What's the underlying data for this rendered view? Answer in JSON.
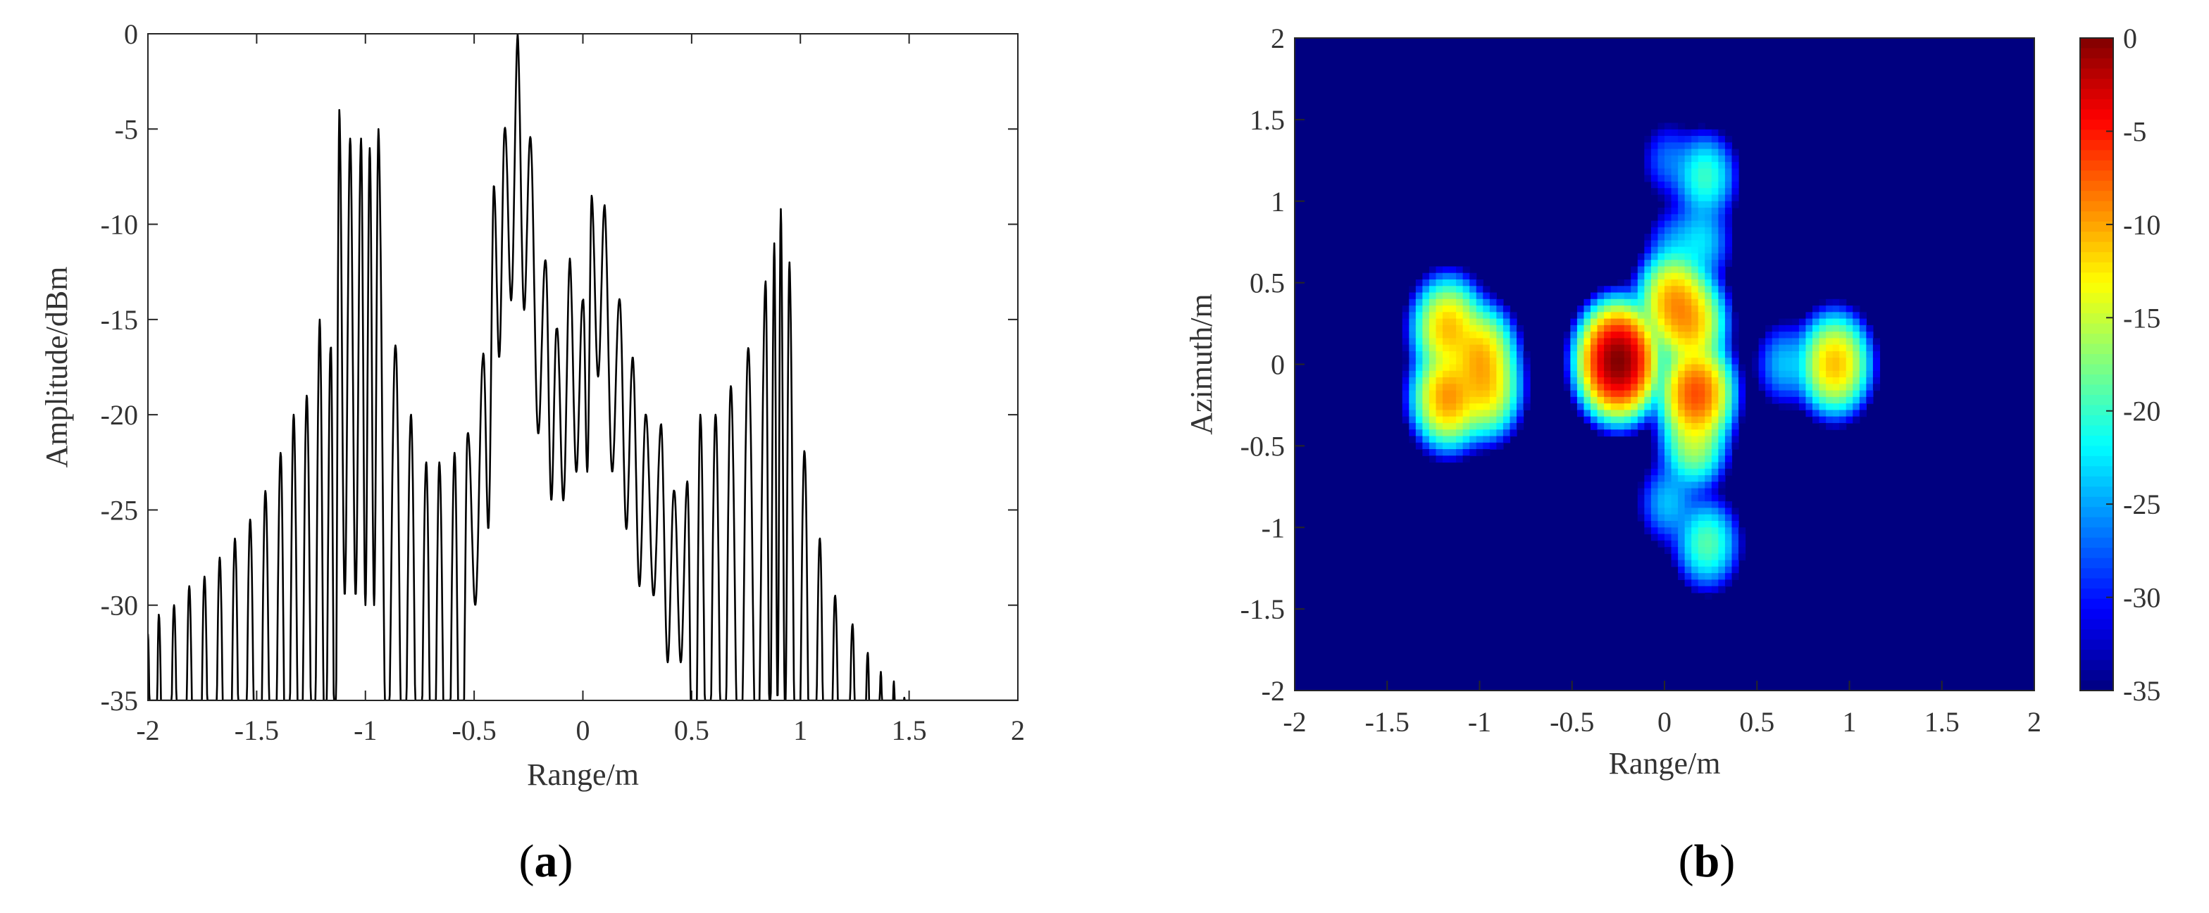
{
  "panels": {
    "a": {
      "label": "(a)",
      "letter": "a"
    },
    "b": {
      "label": "(b)",
      "letter": "b"
    }
  },
  "chart_data": [
    {
      "type": "line",
      "panel": "(a)",
      "xlabel": "Range/m",
      "ylabel": "Amplitude/dBm",
      "xlim": [
        -2,
        2
      ],
      "ylim": [
        -35,
        0
      ],
      "xticks": [
        -2,
        -1.5,
        -1,
        -0.5,
        0,
        0.5,
        1,
        1.5,
        2
      ],
      "xtick_labels": [
        "-2",
        "-1.5",
        "-1",
        "-0.5",
        "0",
        "0.5",
        "1",
        "1.5",
        "2"
      ],
      "yticks": [
        0,
        -5,
        -10,
        -15,
        -20,
        -25,
        -30,
        -35
      ],
      "ytick_labels": [
        "0",
        "-5",
        "-10",
        "-15",
        "-20",
        "-25",
        "-30",
        "-35"
      ],
      "grid": false,
      "line_color": "#000000",
      "series": [
        {
          "envelope_peaks": {
            "x": [
              -2.0,
              -1.95,
              -1.88,
              -1.81,
              -1.74,
              -1.67,
              -1.6,
              -1.53,
              -1.46,
              -1.39,
              -1.33,
              -1.27,
              -1.21,
              -1.16,
              -1.12,
              -1.07,
              -1.02,
              -0.98,
              -0.94,
              -0.86,
              -0.79,
              -0.72,
              -0.66,
              -0.59,
              -0.53,
              -0.46,
              -0.41,
              -0.36,
              -0.3,
              -0.24,
              -0.17,
              -0.12,
              -0.06,
              0.0,
              0.04,
              0.1,
              0.17,
              0.23,
              0.29,
              0.36,
              0.42,
              0.48,
              0.54,
              0.61,
              0.68,
              0.76,
              0.84,
              0.88,
              0.91,
              0.95,
              1.02,
              1.09,
              1.16,
              1.24,
              1.31,
              1.37,
              1.43,
              1.48
            ],
            "y": [
              -31.5,
              -30.5,
              -30.0,
              -29.0,
              -28.5,
              -27.5,
              -26.5,
              -25.5,
              -24.0,
              -22.0,
              -20.0,
              -19.0,
              -15.0,
              -16.5,
              -4.0,
              -5.5,
              -5.5,
              -6.0,
              -5.0,
              -16.5,
              -20.0,
              -22.5,
              -22.5,
              -22.0,
              -21.0,
              -17.0,
              -8.0,
              -5.0,
              0.0,
              -5.5,
              -12.0,
              -15.5,
              -11.8,
              -14.0,
              -8.5,
              -9.0,
              -14.0,
              -17.0,
              -20.0,
              -20.5,
              -24.0,
              -23.5,
              -20.0,
              -20.0,
              -18.5,
              -16.5,
              -13.0,
              -11.0,
              -9.2,
              -12.0,
              -22.0,
              -26.5,
              -29.5,
              -31.0,
              -32.5,
              -33.5,
              -34.0,
              -34.5
            ]
          }
        }
      ]
    },
    {
      "type": "heatmap",
      "panel": "(b)",
      "xlabel": "Range/m",
      "ylabel": "Azimuth/m",
      "xlim": [
        -2,
        2
      ],
      "ylim": [
        -2,
        2
      ],
      "xticks": [
        -2,
        -1.5,
        -1,
        -0.5,
        0,
        0.5,
        1,
        1.5,
        2
      ],
      "xtick_labels": [
        "-2",
        "-1.5",
        "-1",
        "-0.5",
        "0",
        "0.5",
        "1",
        "1.5",
        "2"
      ],
      "yticks": [
        2,
        1.5,
        1,
        0.5,
        0,
        -0.5,
        -1,
        -1.5,
        -2
      ],
      "ytick_labels": [
        "2",
        "1.5",
        "1",
        "0.5",
        "0",
        "-0.5",
        "-1",
        "-1.5",
        "-2"
      ],
      "colorbar": {
        "colormap": "jet",
        "range": [
          -35,
          0
        ],
        "ticks": [
          0,
          -5,
          -10,
          -15,
          -20,
          -25,
          -30,
          -35
        ],
        "tick_labels": [
          "0",
          "-5",
          "-10",
          "-15",
          "-20",
          "-25",
          "-30",
          "-35"
        ]
      },
      "background_value": -35,
      "scatterers": [
        {
          "x": -0.25,
          "y": 0.02,
          "peak_db": 0.0
        },
        {
          "x": 0.05,
          "y": 0.38,
          "peak_db": -10.0
        },
        {
          "x": 0.14,
          "y": 0.25,
          "peak_db": -11.0
        },
        {
          "x": 0.17,
          "y": -0.18,
          "peak_db": -7.0
        },
        {
          "x": 0.16,
          "y": -0.48,
          "peak_db": -16.0
        },
        {
          "x": -1.17,
          "y": 0.22,
          "peak_db": -11.0
        },
        {
          "x": -1.17,
          "y": -0.2,
          "peak_db": -9.5
        },
        {
          "x": -1.0,
          "y": 0.05,
          "peak_db": -11.0
        },
        {
          "x": -0.97,
          "y": -0.15,
          "peak_db": -12.0
        },
        {
          "x": 0.92,
          "y": 0.0,
          "peak_db": -11.0
        },
        {
          "x": 0.65,
          "y": 0.0,
          "peak_db": -24.0
        },
        {
          "x": 0.23,
          "y": -1.1,
          "peak_db": -19.0
        },
        {
          "x": 0.02,
          "y": -0.85,
          "peak_db": -24.0
        },
        {
          "x": 0.22,
          "y": 1.15,
          "peak_db": -20.0
        },
        {
          "x": 0.02,
          "y": 1.25,
          "peak_db": -27.0
        },
        {
          "x": 0.2,
          "y": 0.75,
          "peak_db": -23.0
        },
        {
          "x": 0.05,
          "y": 0.72,
          "peak_db": -26.0
        }
      ]
    }
  ]
}
